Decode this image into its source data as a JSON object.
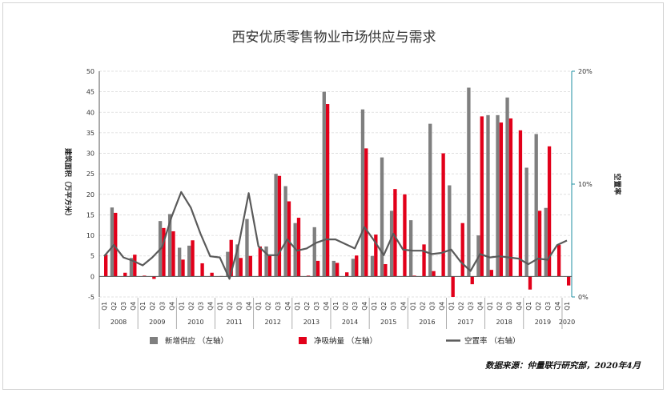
{
  "chart_data": {
    "type": "bar",
    "title": "西安优质零售物业市场供应与需求",
    "ylabel_left": "建筑面积（万平方米）",
    "ylabel_right": "空置率",
    "ylim_left": [
      -5,
      50
    ],
    "yticks_left": [
      "-5",
      "0",
      "5",
      "10",
      "15",
      "20",
      "25",
      "30",
      "35",
      "40",
      "45",
      "50"
    ],
    "ylim_right": [
      0,
      20
    ],
    "yticks_right": [
      "0%",
      "10%",
      "20%"
    ],
    "quarters": [
      "Q1",
      "Q2",
      "Q3",
      "Q4",
      "Q1",
      "Q2",
      "Q3",
      "Q4",
      "Q1",
      "Q2",
      "Q3",
      "Q4",
      "Q1",
      "Q2",
      "Q3",
      "Q4",
      "Q1",
      "Q2",
      "Q3",
      "Q4",
      "Q1",
      "Q2",
      "Q3",
      "Q4",
      "Q1",
      "Q2",
      "Q3",
      "Q4",
      "Q1",
      "Q2",
      "Q3",
      "Q4",
      "Q1",
      "Q2",
      "Q3",
      "Q4",
      "Q1",
      "Q2",
      "Q3",
      "Q4",
      "Q1",
      "Q2",
      "Q3",
      "Q4",
      "Q1",
      "Q2",
      "Q3",
      "Q4",
      "Q1"
    ],
    "years": [
      "2008",
      "2009",
      "2010",
      "2011",
      "2012",
      "2013",
      "2014",
      "2015",
      "2016",
      "2017",
      "2018",
      "2019",
      "2020"
    ],
    "series": [
      {
        "name": "新增供应 （左轴）",
        "kind": "bar",
        "color": "#7f7f7f",
        "values": [
          0,
          16.8,
          0,
          4.5,
          0,
          0,
          13.5,
          15.2,
          7,
          7.5,
          0,
          0,
          0,
          6,
          7.8,
          14,
          0,
          7.3,
          25,
          22,
          13,
          0,
          12,
          45,
          3.8,
          0,
          4.3,
          40.7,
          5,
          29,
          16,
          0,
          13.7,
          0,
          37.2,
          0,
          22.2,
          0,
          46,
          10,
          39.3,
          39.3,
          43.6,
          0,
          26.5,
          34.7,
          16.7,
          0,
          0
        ]
      },
      {
        "name": "净吸纳量 （左轴）",
        "kind": "bar",
        "color": "#e2001a",
        "values": [
          5.3,
          15.5,
          0.9,
          5.3,
          0.2,
          -0.6,
          11.8,
          11,
          4.1,
          8.8,
          3.2,
          0.9,
          0.1,
          8.9,
          4.5,
          5,
          7.3,
          5,
          24.5,
          18.3,
          14.3,
          0.2,
          3.8,
          42,
          3.3,
          1,
          5.1,
          31.2,
          10.2,
          3,
          21.3,
          20,
          0.2,
          7.8,
          1.3,
          30,
          -5,
          13,
          -1.9,
          39,
          1.6,
          37.5,
          38.5,
          35.6,
          -3.2,
          16,
          31.7,
          7.7,
          -2.2
        ]
      },
      {
        "name": "空置率 （右轴）",
        "kind": "line",
        "color": "#5a5a5a",
        "values": [
          3.6,
          4.6,
          3.5,
          3.2,
          2.8,
          3.5,
          4.4,
          7.1,
          9.3,
          7.9,
          5.6,
          3.6,
          3.5,
          1.6,
          4.8,
          9.2,
          4.5,
          3.7,
          3.7,
          5.1,
          4.1,
          4.3,
          4.8,
          5.1,
          5.1,
          4.7,
          4.3,
          6.2,
          5,
          3.7,
          5.6,
          4.2,
          4.1,
          4.1,
          3.8,
          3.9,
          4.2,
          3.1,
          2.3,
          3.8,
          3.5,
          3.6,
          3.5,
          3.4,
          2.9,
          3.4,
          3.3,
          4.6,
          5
        ]
      }
    ],
    "legend_position": "bottom",
    "grid": true
  },
  "source_note": "数据来源：仲量联行研究部，2020年4月"
}
